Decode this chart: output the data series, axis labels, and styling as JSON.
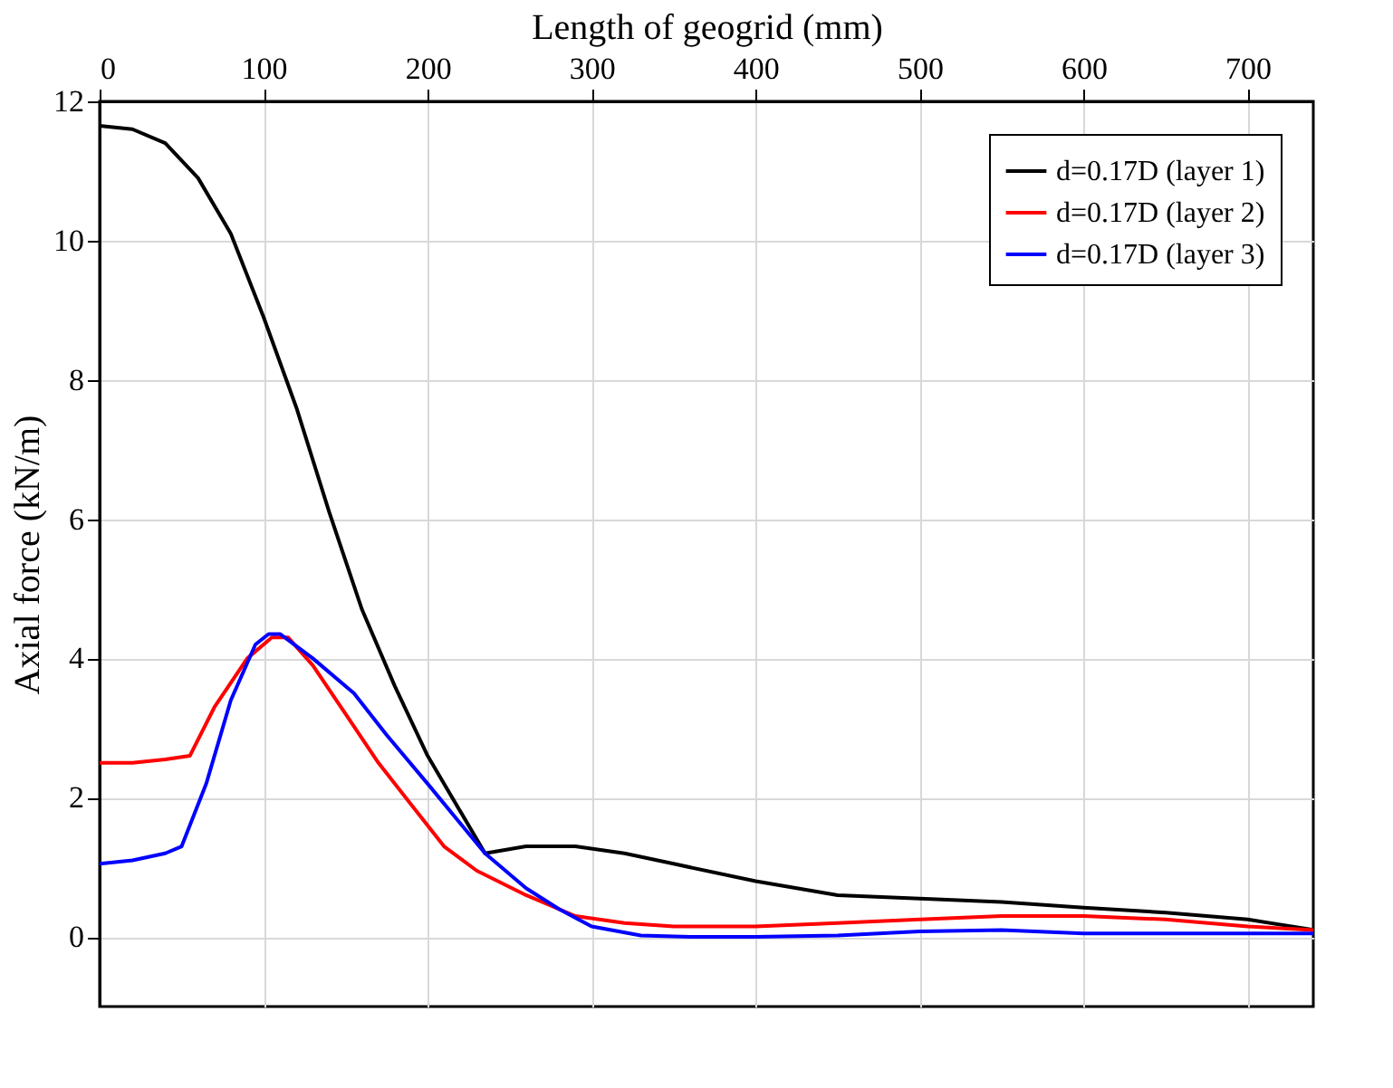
{
  "chart_data": {
    "type": "line",
    "xlabel": "Length of geogrid (mm)",
    "ylabel": "Axial force (kN/m)",
    "xlim": [
      0,
      740
    ],
    "xticks": [
      0,
      100,
      200,
      300,
      400,
      500,
      600,
      700
    ],
    "ylim": [
      -1,
      12
    ],
    "yticks": [
      0,
      2,
      4,
      6,
      8,
      10,
      12
    ],
    "grid": true,
    "legend": "top right",
    "marker": "none",
    "line_style": "solid",
    "series": [
      {
        "name": "d=0.17D (layer 1)",
        "color": "#000000",
        "x": [
          0,
          20,
          40,
          60,
          80,
          100,
          120,
          140,
          160,
          180,
          200,
          220,
          235,
          260,
          290,
          320,
          350,
          400,
          450,
          500,
          550,
          600,
          650,
          700,
          740
        ],
        "values": [
          11.65,
          11.6,
          11.4,
          10.9,
          10.1,
          8.9,
          7.6,
          6.1,
          4.7,
          3.6,
          2.6,
          1.8,
          1.2,
          1.3,
          1.3,
          1.2,
          1.05,
          0.8,
          0.6,
          0.55,
          0.5,
          0.42,
          0.35,
          0.25,
          0.1
        ]
      },
      {
        "name": "d=0.17D (layer 2)",
        "color": "#ff0000",
        "x": [
          0,
          20,
          40,
          55,
          70,
          90,
          105,
          115,
          130,
          150,
          170,
          190,
          210,
          230,
          260,
          290,
          320,
          350,
          400,
          450,
          500,
          550,
          600,
          650,
          700,
          740
        ],
        "values": [
          2.5,
          2.5,
          2.55,
          2.6,
          3.3,
          4.0,
          4.3,
          4.3,
          3.9,
          3.2,
          2.5,
          1.9,
          1.3,
          0.95,
          0.6,
          0.3,
          0.2,
          0.15,
          0.15,
          0.2,
          0.25,
          0.3,
          0.3,
          0.25,
          0.15,
          0.1
        ]
      },
      {
        "name": "d=0.17D (layer 3)",
        "color": "#0000ff",
        "x": [
          0,
          20,
          40,
          50,
          65,
          80,
          95,
          103,
          110,
          130,
          155,
          175,
          200,
          235,
          260,
          280,
          300,
          330,
          360,
          400,
          450,
          500,
          550,
          600,
          650,
          700,
          740
        ],
        "values": [
          1.05,
          1.1,
          1.2,
          1.3,
          2.2,
          3.4,
          4.2,
          4.35,
          4.35,
          4.0,
          3.5,
          2.9,
          2.2,
          1.2,
          0.7,
          0.4,
          0.15,
          0.02,
          0,
          0,
          0.02,
          0.08,
          0.1,
          0.05,
          0.05,
          0.05,
          0.05
        ]
      }
    ]
  }
}
